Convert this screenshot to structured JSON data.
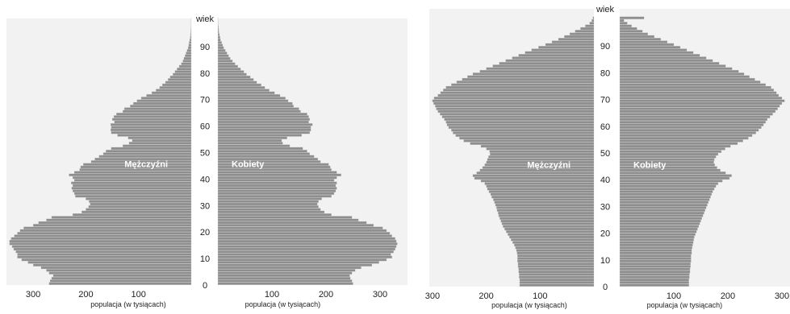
{
  "colors": {
    "bar": "#8e8e8e",
    "panel": "#f2f2f2",
    "bar_line": "#cfcfcf",
    "text": "#222222"
  },
  "chart_data": [
    {
      "type": "bar",
      "title": "",
      "age_label": "wiek",
      "age_ticks": [
        "0",
        "10",
        "20",
        "30",
        "40",
        "50",
        "60",
        "70",
        "80",
        "90"
      ],
      "xlabel_left": "populacja (w tysiącach)",
      "xlabel_right": "populacja (w tysiącach)",
      "x_ticks_left": [
        "300",
        "200",
        "100"
      ],
      "x_ticks_right": [
        "100",
        "200",
        "300"
      ],
      "xlim": [
        0,
        300
      ],
      "ylim": [
        0,
        100
      ],
      "male_label": "Mężczyźni",
      "female_label": "Kobiety",
      "ages": [
        0,
        1,
        2,
        3,
        4,
        5,
        6,
        7,
        8,
        9,
        10,
        11,
        12,
        13,
        14,
        15,
        16,
        17,
        18,
        19,
        20,
        21,
        22,
        23,
        24,
        25,
        26,
        27,
        28,
        29,
        30,
        31,
        32,
        33,
        34,
        35,
        36,
        37,
        38,
        39,
        40,
        41,
        42,
        43,
        44,
        45,
        46,
        47,
        48,
        49,
        50,
        51,
        52,
        53,
        54,
        55,
        56,
        57,
        58,
        59,
        60,
        61,
        62,
        63,
        64,
        65,
        66,
        67,
        68,
        69,
        70,
        71,
        72,
        73,
        74,
        75,
        76,
        77,
        78,
        79,
        80,
        81,
        82,
        83,
        84,
        85,
        86,
        87,
        88,
        89,
        90,
        91,
        92,
        93,
        94,
        95,
        96,
        97,
        98,
        99,
        100
      ],
      "male": [
        270,
        268,
        265,
        262,
        270,
        275,
        285,
        300,
        310,
        322,
        330,
        330,
        333,
        337,
        340,
        345,
        345,
        342,
        336,
        330,
        325,
        318,
        300,
        290,
        275,
        265,
        225,
        208,
        200,
        195,
        192,
        194,
        200,
        220,
        222,
        225,
        227,
        225,
        228,
        222,
        225,
        232,
        222,
        212,
        210,
        205,
        190,
        183,
        175,
        167,
        162,
        152,
        130,
        118,
        112,
        120,
        140,
        152,
        153,
        152,
        153,
        146,
        150,
        147,
        142,
        130,
        127,
        116,
        110,
        103,
        95,
        85,
        75,
        67,
        60,
        55,
        49,
        44,
        40,
        35,
        31,
        27,
        23,
        19,
        16,
        14,
        12,
        10,
        8,
        6,
        5,
        4,
        3,
        2,
        1.5,
        1,
        0.8,
        0.5,
        0.3,
        0.2,
        0.1
      ],
      "female": [
        250,
        248,
        245,
        244,
        248,
        254,
        265,
        285,
        298,
        312,
        322,
        320,
        325,
        328,
        330,
        332,
        330,
        328,
        322,
        318,
        312,
        305,
        288,
        275,
        260,
        248,
        210,
        197,
        190,
        186,
        184,
        186,
        192,
        210,
        215,
        218,
        220,
        218,
        220,
        215,
        220,
        228,
        220,
        210,
        208,
        205,
        190,
        185,
        178,
        170,
        165,
        157,
        133,
        120,
        118,
        128,
        155,
        170,
        172,
        172,
        175,
        168,
        170,
        168,
        165,
        153,
        150,
        140,
        138,
        130,
        125,
        115,
        105,
        95,
        87,
        80,
        72,
        66,
        60,
        53,
        48,
        42,
        37,
        32,
        27,
        23,
        20,
        17,
        14,
        11,
        9,
        7,
        5,
        4,
        3,
        2,
        1.5,
        1,
        0.6,
        0.4,
        0.2
      ]
    },
    {
      "type": "bar",
      "title": "",
      "age_label": "wiek",
      "age_ticks": [
        "0",
        "10",
        "20",
        "30",
        "40",
        "50",
        "60",
        "70",
        "80",
        "90"
      ],
      "xlabel_left": "populacja (w tysiącach)",
      "xlabel_right": "populacja (w tysiącach)",
      "x_ticks_left": [
        "300",
        "200",
        "100"
      ],
      "x_ticks_right": [
        "100",
        "200",
        "300"
      ],
      "xlim": [
        0,
        300
      ],
      "ylim": [
        0,
        100
      ],
      "male_label": "Mężczyźni",
      "female_label": "Kobiety",
      "ages": [
        0,
        1,
        2,
        3,
        4,
        5,
        6,
        7,
        8,
        9,
        10,
        11,
        12,
        13,
        14,
        15,
        16,
        17,
        18,
        19,
        20,
        21,
        22,
        23,
        24,
        25,
        26,
        27,
        28,
        29,
        30,
        31,
        32,
        33,
        34,
        35,
        36,
        37,
        38,
        39,
        40,
        41,
        42,
        43,
        44,
        45,
        46,
        47,
        48,
        49,
        50,
        51,
        52,
        53,
        54,
        55,
        56,
        57,
        58,
        59,
        60,
        61,
        62,
        63,
        64,
        65,
        66,
        67,
        68,
        69,
        70,
        71,
        72,
        73,
        74,
        75,
        76,
        77,
        78,
        79,
        80,
        81,
        82,
        83,
        84,
        85,
        86,
        87,
        88,
        89,
        90,
        91,
        92,
        93,
        94,
        95,
        96,
        97,
        98,
        99,
        100
      ],
      "male": [
        138,
        138,
        138,
        139,
        139,
        140,
        140,
        141,
        141,
        142,
        142,
        142,
        143,
        144,
        146,
        148,
        151,
        154,
        157,
        160,
        163,
        166,
        169,
        171,
        173,
        175,
        177,
        178,
        180,
        181,
        183,
        185,
        187,
        190,
        192,
        195,
        198,
        200,
        203,
        210,
        222,
        225,
        218,
        212,
        207,
        203,
        200,
        198,
        196,
        193,
        194,
        200,
        210,
        230,
        242,
        250,
        257,
        262,
        265,
        270,
        273,
        275,
        278,
        282,
        286,
        290,
        293,
        295,
        298,
        300,
        297,
        290,
        285,
        280,
        275,
        265,
        255,
        245,
        235,
        225,
        212,
        200,
        188,
        176,
        164,
        152,
        140,
        128,
        116,
        103,
        90,
        78,
        66,
        55,
        45,
        35,
        25,
        16,
        8,
        4,
        2
      ],
      "female": [
        128,
        128,
        128,
        129,
        129,
        130,
        130,
        131,
        131,
        132,
        132,
        132,
        133,
        133,
        134,
        135,
        136,
        137,
        138,
        140,
        142,
        144,
        146,
        148,
        150,
        152,
        154,
        156,
        158,
        160,
        162,
        164,
        166,
        168,
        170,
        172,
        175,
        178,
        182,
        190,
        203,
        207,
        196,
        186,
        180,
        176,
        174,
        175,
        178,
        182,
        188,
        195,
        205,
        218,
        228,
        238,
        245,
        252,
        257,
        262,
        266,
        270,
        273,
        278,
        283,
        288,
        292,
        296,
        300,
        305,
        300,
        294,
        290,
        285,
        280,
        270,
        260,
        250,
        240,
        230,
        220,
        208,
        196,
        184,
        172,
        160,
        148,
        136,
        124,
        112,
        100,
        88,
        76,
        64,
        52,
        42,
        32,
        22,
        14,
        8,
        45
      ]
    }
  ]
}
